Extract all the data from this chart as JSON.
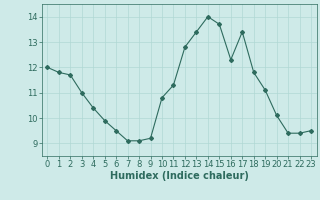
{
  "x": [
    0,
    1,
    2,
    3,
    4,
    5,
    6,
    7,
    8,
    9,
    10,
    11,
    12,
    13,
    14,
    15,
    16,
    17,
    18,
    19,
    20,
    21,
    22,
    23
  ],
  "y": [
    12.0,
    11.8,
    11.7,
    11.0,
    10.4,
    9.9,
    9.5,
    9.1,
    9.1,
    9.2,
    10.8,
    11.3,
    12.8,
    13.4,
    14.0,
    13.7,
    12.3,
    13.4,
    11.8,
    11.1,
    10.1,
    9.4,
    9.4,
    9.5
  ],
  "line_color": "#2e6b5e",
  "marker": "D",
  "marker_size": 2.0,
  "bg_color": "#ceeae8",
  "grid_color": "#b0d8d4",
  "xlabel": "Humidex (Indice chaleur)",
  "xlabel_fontsize": 7,
  "tick_fontsize": 6,
  "ylim": [
    8.5,
    14.5
  ],
  "xlim": [
    -0.5,
    23.5
  ],
  "yticks": [
    9,
    10,
    11,
    12,
    13,
    14
  ],
  "xticks": [
    0,
    1,
    2,
    3,
    4,
    5,
    6,
    7,
    8,
    9,
    10,
    11,
    12,
    13,
    14,
    15,
    16,
    17,
    18,
    19,
    20,
    21,
    22,
    23
  ]
}
